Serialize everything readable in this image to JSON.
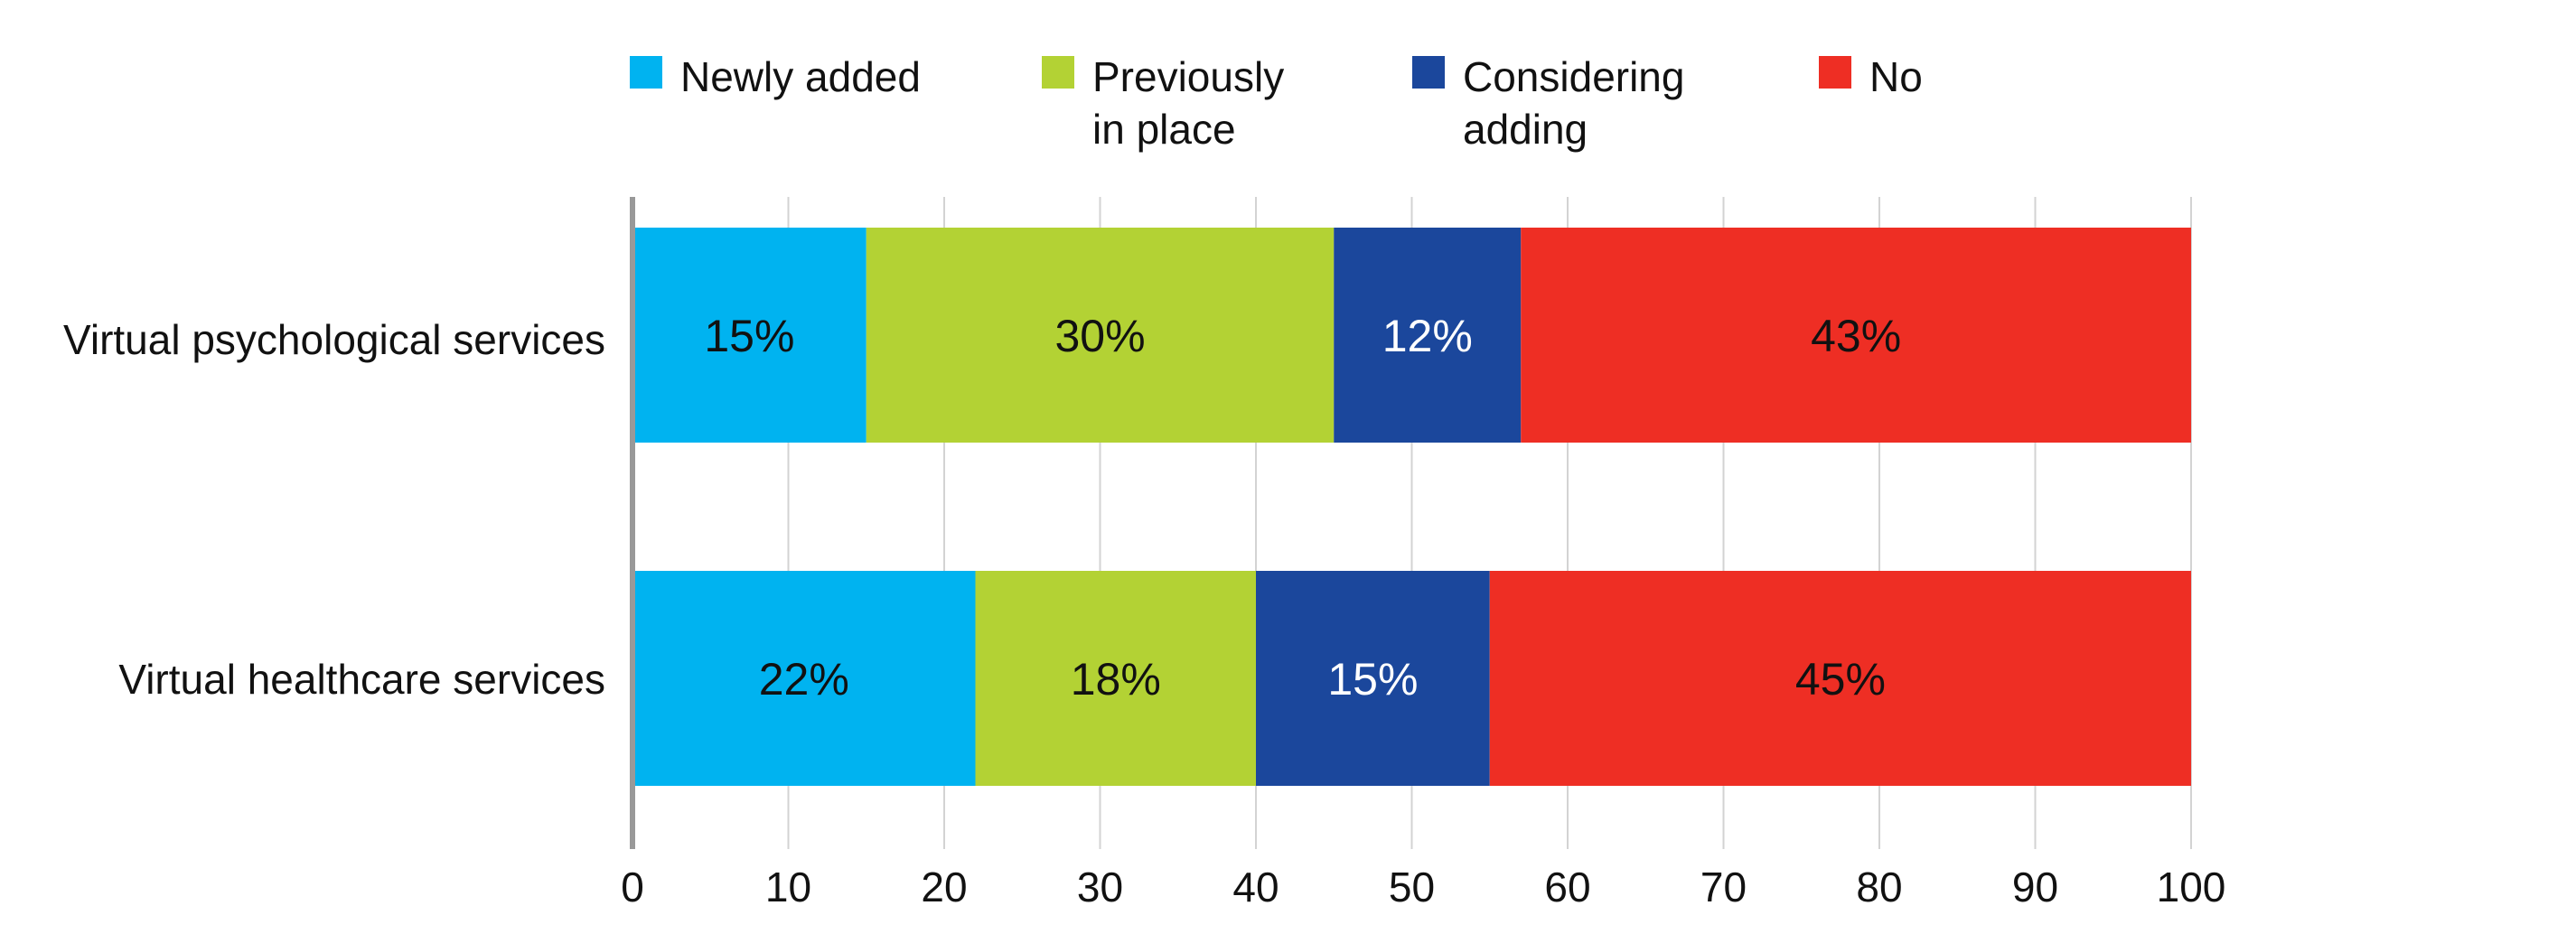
{
  "chart_data": {
    "type": "bar",
    "orientation": "horizontal",
    "stacked": true,
    "categories": [
      "Virtual psychological services",
      "Virtual healthcare services"
    ],
    "series": [
      {
        "name": "Newly added",
        "legend_lines": [
          "Newly added"
        ],
        "color": "#00b3f0",
        "values": [
          15,
          22
        ],
        "labels": [
          "15%",
          "22%"
        ],
        "label_color": "#111111"
      },
      {
        "name": "Previously in place",
        "legend_lines": [
          "Previously",
          "in place"
        ],
        "color": "#b3d234",
        "values": [
          30,
          18
        ],
        "labels": [
          "30%",
          "18%"
        ],
        "label_color": "#111111"
      },
      {
        "name": "Considering adding",
        "legend_lines": [
          "Considering",
          "adding"
        ],
        "color": "#1b479c",
        "values": [
          12,
          15
        ],
        "labels": [
          "12%",
          "15%"
        ],
        "label_color": "#ffffff"
      },
      {
        "name": "No",
        "legend_lines": [
          "No"
        ],
        "color": "#ee2e24",
        "values": [
          43,
          45
        ],
        "labels": [
          "43%",
          "45%"
        ],
        "label_color": "#111111"
      }
    ],
    "xlim": [
      0,
      100
    ],
    "xticks": [
      0,
      10,
      20,
      30,
      40,
      50,
      60,
      70,
      80,
      90,
      100
    ],
    "xtick_labels": [
      "0",
      "10",
      "20",
      "30",
      "40",
      "50",
      "60",
      "70",
      "80",
      "90",
      "100"
    ],
    "grid": true,
    "legend_position": "top",
    "title": "",
    "xlabel": "",
    "ylabel": ""
  }
}
